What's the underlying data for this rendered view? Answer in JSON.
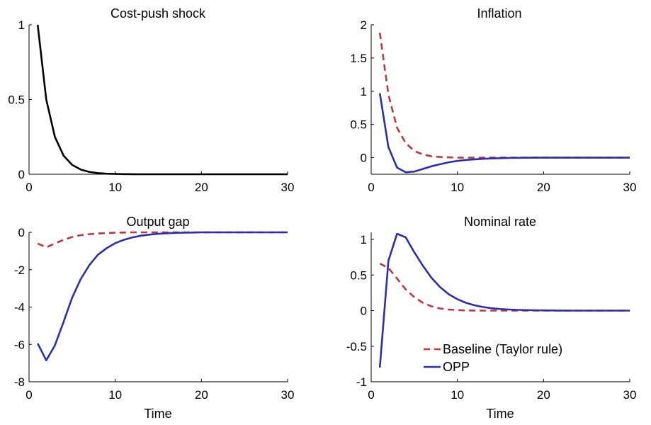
{
  "colors": {
    "axis": "#000000",
    "black_series": "#000000",
    "baseline": "#c0363d",
    "opp": "#2d2db0"
  },
  "legend": {
    "position": "lower-right of Nominal rate panel",
    "items": [
      {
        "label": "Baseline (Taylor rule)",
        "style": "dashed",
        "color": "#c0363d"
      },
      {
        "label": "OPP",
        "style": "solid",
        "color": "#2d2db0"
      }
    ]
  },
  "chart_data": [
    {
      "type": "line",
      "title": "Cost-push shock",
      "xlabel": "",
      "xlim": [
        0,
        30
      ],
      "ylim": [
        0,
        1
      ],
      "xticks": [
        0,
        10,
        20,
        30
      ],
      "yticks": [
        0,
        0.5,
        1
      ],
      "ytick_labels": [
        "0",
        "0.5",
        "1"
      ],
      "series": [
        {
          "style": "solid",
          "color": "#000000",
          "x": [
            1,
            2,
            3,
            4,
            5,
            6,
            7,
            8,
            9,
            10,
            11,
            12,
            13,
            14,
            15,
            16,
            17,
            18,
            19,
            20,
            21,
            22,
            23,
            24,
            25,
            26,
            27,
            28,
            29,
            30
          ],
          "y": [
            1,
            0.5,
            0.25,
            0.125,
            0.0625,
            0.0313,
            0.0156,
            0.0078,
            0.0039,
            0.002,
            0.001,
            0.0005,
            0.0002,
            0.0001,
            0,
            0,
            0,
            0,
            0,
            0,
            0,
            0,
            0,
            0,
            0,
            0,
            0,
            0,
            0,
            0
          ]
        }
      ]
    },
    {
      "type": "line",
      "title": "Inflation",
      "xlabel": "",
      "xlim": [
        0,
        30
      ],
      "ylim": [
        -0.25,
        2
      ],
      "xticks": [
        0,
        10,
        20,
        30
      ],
      "yticks": [
        0,
        0.5,
        1,
        1.5,
        2
      ],
      "ytick_labels": [
        "0",
        "0.5",
        "1",
        "1.5",
        "2"
      ],
      "series": [
        {
          "style": "dashed",
          "color": "#c0363d",
          "x": [
            1,
            2,
            3,
            4,
            5,
            6,
            7,
            8,
            9,
            10,
            11,
            12,
            13,
            14,
            15,
            16,
            17,
            18,
            19,
            20,
            21,
            22,
            23,
            24,
            25,
            26,
            27,
            28,
            29,
            30
          ],
          "y": [
            1.88,
            0.95,
            0.45,
            0.22,
            0.1,
            0.05,
            0.02,
            0.01,
            0.005,
            0,
            0,
            0,
            0,
            0,
            0,
            0,
            0,
            0,
            0,
            0,
            0,
            0,
            0,
            0,
            0,
            0,
            0,
            0,
            0,
            0
          ]
        },
        {
          "style": "solid",
          "color": "#2d2db0",
          "x": [
            1,
            2,
            3,
            4,
            5,
            6,
            7,
            8,
            9,
            10,
            11,
            12,
            13,
            14,
            15,
            16,
            17,
            18,
            19,
            20,
            21,
            22,
            23,
            24,
            25,
            26,
            27,
            28,
            29,
            30
          ],
          "y": [
            0.97,
            0.16,
            -0.15,
            -0.22,
            -0.21,
            -0.17,
            -0.13,
            -0.1,
            -0.07,
            -0.05,
            -0.035,
            -0.025,
            -0.018,
            -0.012,
            -0.008,
            -0.005,
            -0.003,
            -0.002,
            -0.001,
            0,
            0,
            0,
            0,
            0,
            0,
            0,
            0,
            0,
            0,
            0
          ]
        }
      ]
    },
    {
      "type": "line",
      "title": "Output gap",
      "xlabel": "Time",
      "xlim": [
        0,
        30
      ],
      "ylim": [
        -8,
        0
      ],
      "xticks": [
        0,
        10,
        20,
        30
      ],
      "yticks": [
        -8,
        -6,
        -4,
        -2,
        0
      ],
      "ytick_labels": [
        "-8",
        "-6",
        "-4",
        "-2",
        "0"
      ],
      "series": [
        {
          "style": "dashed",
          "color": "#c0363d",
          "x": [
            1,
            2,
            3,
            4,
            5,
            6,
            7,
            8,
            9,
            10,
            11,
            12,
            13,
            14,
            15,
            16,
            17,
            18,
            19,
            20,
            21,
            22,
            23,
            24,
            25,
            26,
            27,
            28,
            29,
            30
          ],
          "y": [
            -0.6,
            -0.8,
            -0.6,
            -0.4,
            -0.25,
            -0.15,
            -0.1,
            -0.06,
            -0.04,
            -0.02,
            -0.01,
            0,
            0,
            0,
            0,
            0,
            0,
            0,
            0,
            0,
            0,
            0,
            0,
            0,
            0,
            0,
            0,
            0,
            0,
            0
          ]
        },
        {
          "style": "solid",
          "color": "#2d2db0",
          "x": [
            1,
            2,
            3,
            4,
            5,
            6,
            7,
            8,
            9,
            10,
            11,
            12,
            13,
            14,
            15,
            16,
            17,
            18,
            19,
            20,
            21,
            22,
            23,
            24,
            25,
            26,
            27,
            28,
            29,
            30
          ],
          "y": [
            -5.95,
            -6.85,
            -6.05,
            -4.8,
            -3.5,
            -2.5,
            -1.75,
            -1.2,
            -0.85,
            -0.58,
            -0.4,
            -0.27,
            -0.18,
            -0.12,
            -0.08,
            -0.05,
            -0.03,
            -0.02,
            -0.01,
            0,
            0,
            0,
            0,
            0,
            0,
            0,
            0,
            0,
            0,
            0
          ]
        }
      ]
    },
    {
      "type": "line",
      "title": "Nominal rate",
      "xlabel": "Time",
      "xlim": [
        0,
        30
      ],
      "ylim": [
        -1,
        1.1
      ],
      "xticks": [
        0,
        10,
        20,
        30
      ],
      "yticks": [
        -1,
        -0.5,
        0,
        0.5,
        1
      ],
      "ytick_labels": [
        "-1",
        "-0.5",
        "0",
        "0.5",
        "1"
      ],
      "series": [
        {
          "name": "Baseline (Taylor rule)",
          "style": "dashed",
          "color": "#c0363d",
          "x": [
            1,
            2,
            3,
            4,
            5,
            6,
            7,
            8,
            9,
            10,
            11,
            12,
            13,
            14,
            15,
            16,
            17,
            18,
            19,
            20,
            21,
            22,
            23,
            24,
            25,
            26,
            27,
            28,
            29,
            30
          ],
          "y": [
            0.66,
            0.6,
            0.45,
            0.3,
            0.19,
            0.11,
            0.06,
            0.03,
            0.015,
            0.007,
            0.003,
            0.001,
            0,
            0,
            0,
            0,
            0,
            0,
            0,
            0,
            0,
            0,
            0,
            0,
            0,
            0,
            0,
            0,
            0,
            0
          ]
        },
        {
          "name": "OPP",
          "style": "solid",
          "color": "#2d2db0",
          "x": [
            1,
            2,
            3,
            4,
            5,
            6,
            7,
            8,
            9,
            10,
            11,
            12,
            13,
            14,
            15,
            16,
            17,
            18,
            19,
            20,
            21,
            22,
            23,
            24,
            25,
            26,
            27,
            28,
            29,
            30
          ],
          "y": [
            -0.8,
            0.7,
            1.08,
            1.03,
            0.82,
            0.63,
            0.46,
            0.33,
            0.23,
            0.16,
            0.11,
            0.075,
            0.05,
            0.033,
            0.022,
            0.015,
            0.01,
            0.007,
            0.005,
            0.003,
            0.002,
            0.001,
            0,
            0,
            0,
            0,
            0,
            0,
            0,
            0
          ]
        }
      ]
    }
  ]
}
